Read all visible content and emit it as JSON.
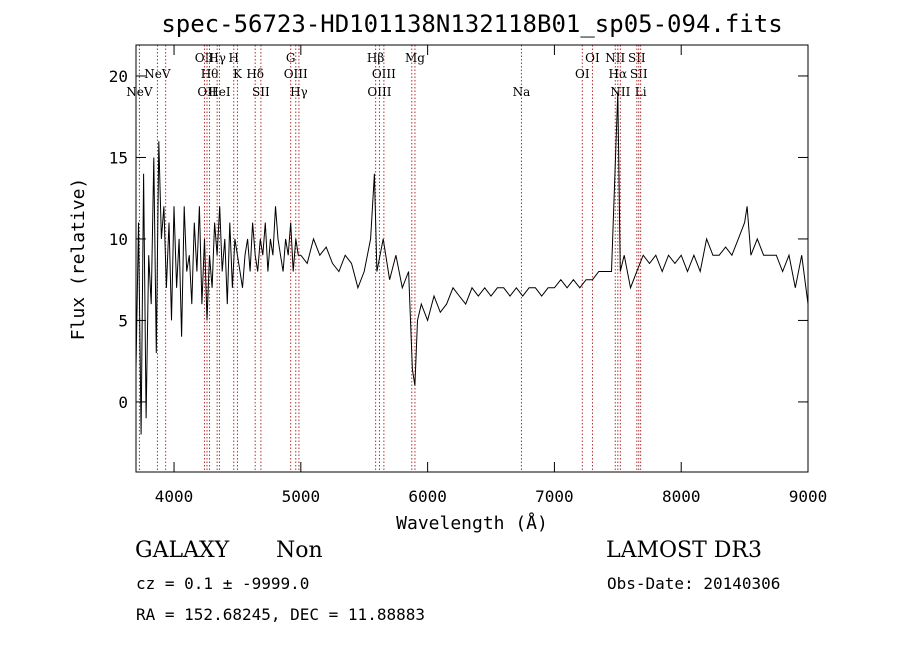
{
  "chart_data": {
    "type": "line",
    "title": "spec-56723-HD101138N132118B01_sp05-094.fits",
    "xlabel": "Wavelength (Å)",
    "ylabel": "Flux (relative)",
    "xlim": [
      3700,
      9000
    ],
    "ylim": [
      -4.3,
      21.9
    ],
    "x_ticks": [
      4000,
      5000,
      6000,
      7000,
      8000,
      9000
    ],
    "y_ticks": [
      0,
      5,
      10,
      15,
      20
    ],
    "grid": false,
    "line_color": "#000000",
    "marker_color": "#b03030",
    "series": [
      {
        "x": [
          3700,
          3720,
          3740,
          3760,
          3780,
          3800,
          3820,
          3840,
          3860,
          3880,
          3900,
          3920,
          3940,
          3960,
          3980,
          4000,
          4020,
          4040,
          4060,
          4080,
          4100,
          4120,
          4140,
          4160,
          4180,
          4200,
          4220,
          4240,
          4260,
          4280,
          4300,
          4320,
          4340,
          4360,
          4380,
          4400,
          4420,
          4440,
          4460,
          4480,
          4500,
          4520,
          4540,
          4560,
          4580,
          4600,
          4620,
          4640,
          4660,
          4680,
          4700,
          4720,
          4740,
          4760,
          4780,
          4800,
          4820,
          4840,
          4860,
          4880,
          4900,
          4920,
          4940,
          4960,
          4980,
          5000,
          5050,
          5100,
          5150,
          5200,
          5250,
          5300,
          5350,
          5400,
          5450,
          5500,
          5550,
          5580,
          5600,
          5650,
          5700,
          5750,
          5800,
          5850,
          5880,
          5900,
          5920,
          5950,
          6000,
          6050,
          6100,
          6150,
          6200,
          6250,
          6300,
          6350,
          6400,
          6450,
          6500,
          6550,
          6600,
          6650,
          6700,
          6750,
          6800,
          6850,
          6900,
          6950,
          7000,
          7050,
          7100,
          7150,
          7200,
          7250,
          7300,
          7350,
          7400,
          7450,
          7500,
          7520,
          7550,
          7600,
          7650,
          7700,
          7750,
          7800,
          7850,
          7900,
          7950,
          8000,
          8050,
          8100,
          8150,
          8200,
          8250,
          8300,
          8350,
          8400,
          8450,
          8500,
          8520,
          8550,
          8600,
          8650,
          8700,
          8750,
          8800,
          8850,
          8900,
          8950,
          9000
        ],
        "y": [
          2,
          11,
          -2,
          14,
          -1,
          9,
          6,
          15,
          3,
          16,
          10,
          12,
          7,
          11,
          5,
          12,
          7,
          10,
          4,
          12,
          8,
          9,
          6,
          11,
          8,
          12,
          6,
          10,
          5,
          9,
          7,
          11,
          9,
          12,
          8,
          10,
          6,
          11,
          7,
          10,
          9,
          8,
          7,
          9,
          10,
          8,
          11,
          9,
          8,
          10,
          9,
          11,
          8,
          10,
          9,
          12,
          10,
          9,
          8,
          10,
          9,
          11,
          8,
          10,
          9,
          9,
          8.5,
          10,
          9,
          9.5,
          8.5,
          8,
          9,
          8.5,
          7,
          8,
          10,
          14,
          8,
          10,
          7.5,
          9,
          7,
          8,
          2,
          1,
          5,
          6,
          5,
          6.5,
          5.5,
          6,
          7,
          6.5,
          6,
          7,
          6.5,
          7,
          6.5,
          7,
          7,
          6.5,
          7,
          6.5,
          7,
          7,
          6.5,
          7,
          7,
          7.5,
          7,
          7.5,
          7,
          7.5,
          7.5,
          8,
          8,
          8,
          19,
          8,
          9,
          7,
          8,
          9,
          8.5,
          9,
          8,
          9,
          8.5,
          9,
          8,
          9,
          8,
          10,
          9,
          9,
          9.5,
          9,
          10,
          11,
          12,
          9,
          10,
          9,
          9,
          9,
          8,
          9,
          7,
          9,
          6
        ]
      }
    ],
    "line_markers": [
      {
        "x": 3727,
        "label": "NeV",
        "row": 3
      },
      {
        "x": 3869,
        "label": "NeV",
        "row": 2
      },
      {
        "x": 3934,
        "label": "",
        "row": 1
      },
      {
        "x": 4240,
        "label": "OII",
        "row": 1
      },
      {
        "x": 4260,
        "label": "OII",
        "row": 3
      },
      {
        "x": 4280,
        "label": "Hθ",
        "row": 2
      },
      {
        "x": 4340,
        "label": "Hγ",
        "row": 1
      },
      {
        "x": 4358,
        "label": "HeI",
        "row": 3
      },
      {
        "x": 4471,
        "label": "H",
        "row": 1
      },
      {
        "x": 4500,
        "label": "K",
        "row": 2
      },
      {
        "x": 4640,
        "label": "Hδ",
        "row": 2
      },
      {
        "x": 4685,
        "label": "SII",
        "row": 3
      },
      {
        "x": 4920,
        "label": "G",
        "row": 1
      },
      {
        "x": 4960,
        "label": "OIII",
        "row": 2
      },
      {
        "x": 4985,
        "label": "Hγ",
        "row": 3
      },
      {
        "x": 5590,
        "label": "Hβ",
        "row": 1
      },
      {
        "x": 5655,
        "label": "OIII",
        "row": 2
      },
      {
        "x": 5620,
        "label": "OIII",
        "row": 3
      },
      {
        "x": 5900,
        "label": "Mg",
        "row": 1
      },
      {
        "x": 5875,
        "label": "",
        "row": 0
      },
      {
        "x": 6740,
        "label": "Na",
        "row": 3
      },
      {
        "x": 7220,
        "label": "OI",
        "row": 2
      },
      {
        "x": 7300,
        "label": "OI",
        "row": 1
      },
      {
        "x": 7480,
        "label": "NII",
        "row": 1
      },
      {
        "x": 7500,
        "label": "Hα",
        "row": 2
      },
      {
        "x": 7520,
        "label": "NII",
        "row": 3
      },
      {
        "x": 7650,
        "label": "SII",
        "row": 1
      },
      {
        "x": 7665,
        "label": "SII",
        "row": 2
      },
      {
        "x": 7680,
        "label": "Li",
        "row": 3
      }
    ]
  },
  "info": {
    "class_label": "GALAXY",
    "subclass_label": "Non",
    "survey_label": "LAMOST DR3",
    "cz_line": "cz = 0.1 ± -9999.0",
    "obs_date_line": "Obs-Date: 20140306",
    "coords_line": "RA = 152.68245, DEC =  11.88883"
  }
}
